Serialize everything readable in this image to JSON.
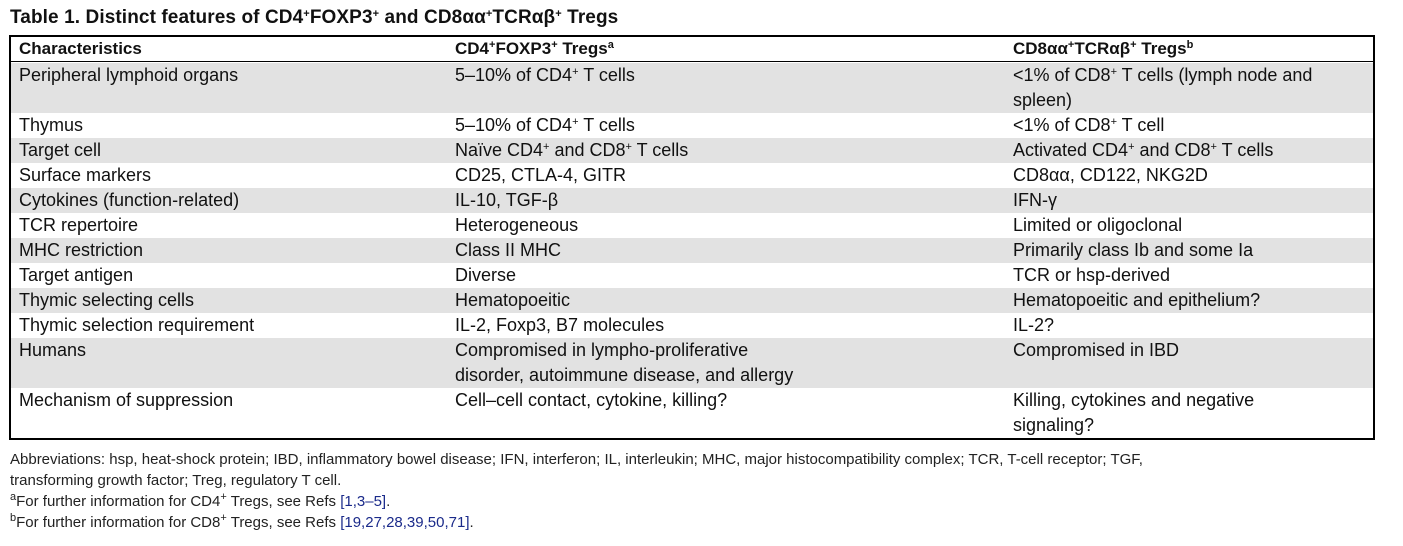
{
  "title": {
    "text": "Table 1. Distinct features of CD4",
    "sup1": "+",
    "mid1": "FOXP3",
    "sup2": "+",
    "mid2": " and CD8αα",
    "sup3": "+",
    "mid3": "TCRαβ",
    "sup4": "+",
    "end": " Tregs"
  },
  "header": {
    "col1": "Characteristics",
    "col2": {
      "a": "CD4",
      "s1": "+",
      "b": "FOXP3",
      "s2": "+",
      "c": " Tregs",
      "note": "a"
    },
    "col3": {
      "a": "CD8αα",
      "s1": "+",
      "b": "TCRαβ",
      "s2": "+",
      "c": " Tregs",
      "note": "b"
    }
  },
  "rows": [
    {
      "c1": "Peripheral lymphoid organs",
      "c2a": "5–10% of CD4",
      "c2s": "+",
      "c2b": " T cells",
      "c3a": "<1% of CD8",
      "c3s": "+",
      "c3b": " T cells (lymph node and",
      "c3l2": "spleen)"
    },
    {
      "c1": "Thymus",
      "c2a": "5–10% of CD4",
      "c2s": "+",
      "c2b": " T cells",
      "c3a": "<1% of CD8",
      "c3s": "+",
      "c3b": " T cell"
    },
    {
      "c1": "Target cell",
      "c2a": "Naïve CD4",
      "c2s": "+",
      "c2b": " and CD8",
      "c2s2": "+",
      "c2c": " T cells",
      "c3a": "Activated CD4",
      "c3s": "+",
      "c3b": " and CD8",
      "c3s2": "+",
      "c3c": " T cells"
    },
    {
      "c1": "Surface markers",
      "c2": "CD25, CTLA-4, GITR",
      "c3": "CD8αα, CD122, NKG2D"
    },
    {
      "c1": "Cytokines (function-related)",
      "c2": "IL-10, TGF-β",
      "c3": "IFN-γ"
    },
    {
      "c1": "TCR repertoire",
      "c2": "Heterogeneous",
      "c3": "Limited or oligoclonal"
    },
    {
      "c1": "MHC restriction",
      "c2": "Class II MHC",
      "c3": "Primarily class Ib and some Ia"
    },
    {
      "c1": "Target antigen",
      "c2": "Diverse",
      "c3": "TCR or hsp-derived"
    },
    {
      "c1": "Thymic selecting cells",
      "c2": "Hematopoeitic",
      "c3": "Hematopoeitic and epithelium?"
    },
    {
      "c1": "Thymic selection requirement",
      "c2": "IL-2, Foxp3, B7 molecules",
      "c3": "IL-2?"
    },
    {
      "c1": "Humans",
      "c2": "Compromised in lympho-proliferative",
      "c2l2": "disorder, autoimmune disease, and allergy",
      "c3": "Compromised in IBD"
    },
    {
      "c1": "Mechanism of suppression",
      "c2": "Cell–cell contact, cytokine, killing?",
      "c3": "Killing, cytokines and negative",
      "c3l2": "signaling?"
    }
  ],
  "notes": {
    "abbr1": "Abbreviations: hsp, heat-shock protein; IBD, inflammatory bowel disease; IFN, interferon; IL, interleukin; MHC, major histocompatibility complex; TCR, T-cell receptor; TGF,",
    "abbr2": "transforming growth factor; Treg, regulatory T cell.",
    "a": {
      "mark": "a",
      "text1": "For further information for CD4",
      "sup": "+",
      "text2": " Tregs, see Refs ",
      "refs": "[1,3–5]",
      "end": "."
    },
    "b": {
      "mark": "b",
      "text1": "For further information for CD8",
      "sup": "+",
      "text2": " Tregs, see Refs ",
      "refs": "[19,27,28,39,50,71]",
      "end": "."
    }
  }
}
